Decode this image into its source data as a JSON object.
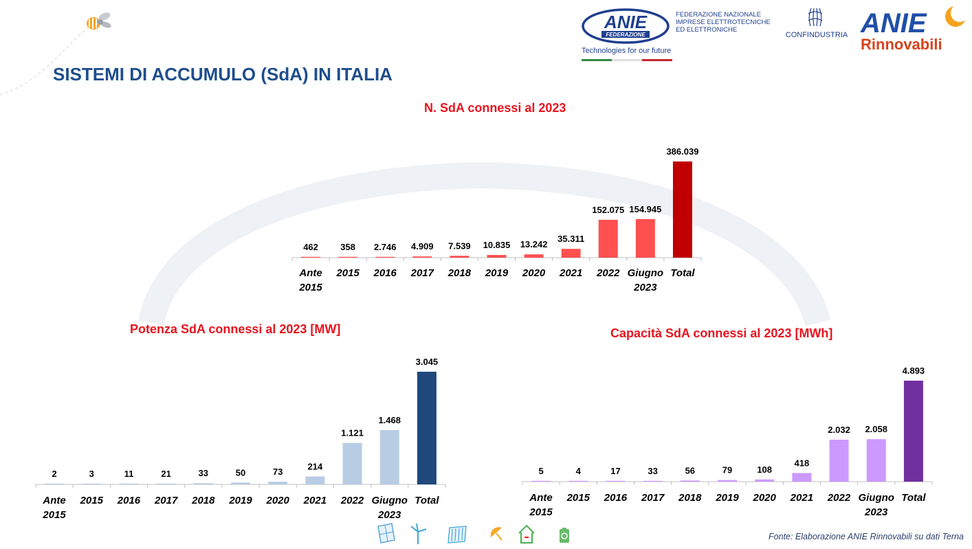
{
  "header": {
    "title": "SISTEMI DI ACCUMULO (SdA) IN ITALIA",
    "logos": {
      "anie_federazione": {
        "name": "ANIE",
        "sub": "FEDERAZIONE",
        "tagline": "Technologies for our future",
        "org_lines": [
          "FEDERAZIONE NAZIONALE",
          "IMPRESE ELETTROTECNICHE",
          "ED ELETTRONICHE"
        ]
      },
      "confindustria": "CONFINDUSTRIA",
      "anie_rinnovabili": {
        "name": "ANIE",
        "sub": "Rinnovabili"
      }
    }
  },
  "colors": {
    "title": "#1f4e8c",
    "chart_title": "#e8141e",
    "number_bars": "#ff5050",
    "number_total": "#c00000",
    "power_bars": "#b8cce4",
    "power_total": "#1f497d",
    "capacity_bars": "#cc99ff",
    "capacity_total": "#7030a0"
  },
  "footer": {
    "source": "Fonte: Elaborazione ANIE Rinnovabili su dati Terna",
    "icons": [
      "solar-panel-icon",
      "wind-turbine-icon",
      "hydro-icon",
      "satellite-dish-icon",
      "green-house-icon",
      "battery-recycle-icon"
    ]
  },
  "chart_data": [
    {
      "id": "count",
      "type": "bar",
      "title": "N. SdA connessi al 2023",
      "categories": [
        "Ante 2015",
        "2015",
        "2016",
        "2017",
        "2018",
        "2019",
        "2020",
        "2021",
        "2022",
        "Giugno 2023",
        "Total"
      ],
      "category_lines": [
        [
          "Ante",
          "2015"
        ],
        [
          "2015"
        ],
        [
          "2016"
        ],
        [
          "2017"
        ],
        [
          "2018"
        ],
        [
          "2019"
        ],
        [
          "2020"
        ],
        [
          "2021"
        ],
        [
          "2022"
        ],
        [
          "Giugno",
          "2023"
        ],
        [
          "Total"
        ]
      ],
      "values": [
        462,
        358,
        2746,
        4909,
        7539,
        10835,
        13242,
        35311,
        152075,
        154945,
        386039
      ],
      "labels": [
        "462",
        "358",
        "2.746",
        "4.909",
        "7.539",
        "10.835",
        "13.242",
        "35.311",
        "152.075",
        "154.945",
        "386.039"
      ],
      "ylim": [
        0,
        386039
      ],
      "grid": false,
      "legend": "none"
    },
    {
      "id": "power",
      "type": "bar",
      "title": "Potenza SdA connessi al 2023 [MW]",
      "categories": [
        "Ante 2015",
        "2015",
        "2016",
        "2017",
        "2018",
        "2019",
        "2020",
        "2021",
        "2022",
        "Giugno 2023",
        "Total"
      ],
      "category_lines": [
        [
          "Ante",
          "2015"
        ],
        [
          "2015"
        ],
        [
          "2016"
        ],
        [
          "2017"
        ],
        [
          "2018"
        ],
        [
          "2019"
        ],
        [
          "2020"
        ],
        [
          "2021"
        ],
        [
          "2022"
        ],
        [
          "Giugno",
          "2023"
        ],
        [
          "Total"
        ]
      ],
      "values": [
        2,
        3,
        11,
        21,
        33,
        50,
        73,
        214,
        1121,
        1468,
        3045
      ],
      "labels": [
        "2",
        "3",
        "11",
        "21",
        "33",
        "50",
        "73",
        "214",
        "1.121",
        "1.468",
        "3.045"
      ],
      "ylim": [
        0,
        3045
      ],
      "grid": false,
      "legend": "none"
    },
    {
      "id": "capacity",
      "type": "bar",
      "title": "Capacità SdA connessi al 2023 [MWh]",
      "categories": [
        "Ante 2015",
        "2015",
        "2016",
        "2017",
        "2018",
        "2019",
        "2020",
        "2021",
        "2022",
        "Giugno 2023",
        "Total"
      ],
      "category_lines": [
        [
          "Ante",
          "2015"
        ],
        [
          "2015"
        ],
        [
          "2016"
        ],
        [
          "2017"
        ],
        [
          "2018"
        ],
        [
          "2019"
        ],
        [
          "2020"
        ],
        [
          "2021"
        ],
        [
          "2022"
        ],
        [
          "Giugno",
          "2023"
        ],
        [
          "Total"
        ]
      ],
      "values": [
        5,
        4,
        17,
        33,
        56,
        79,
        108,
        418,
        2032,
        2058,
        4893
      ],
      "labels": [
        "5",
        "4",
        "17",
        "33",
        "56",
        "79",
        "108",
        "418",
        "2.032",
        "2.058",
        "4.893"
      ],
      "ylim": [
        0,
        4893
      ],
      "grid": false,
      "legend": "none"
    }
  ]
}
